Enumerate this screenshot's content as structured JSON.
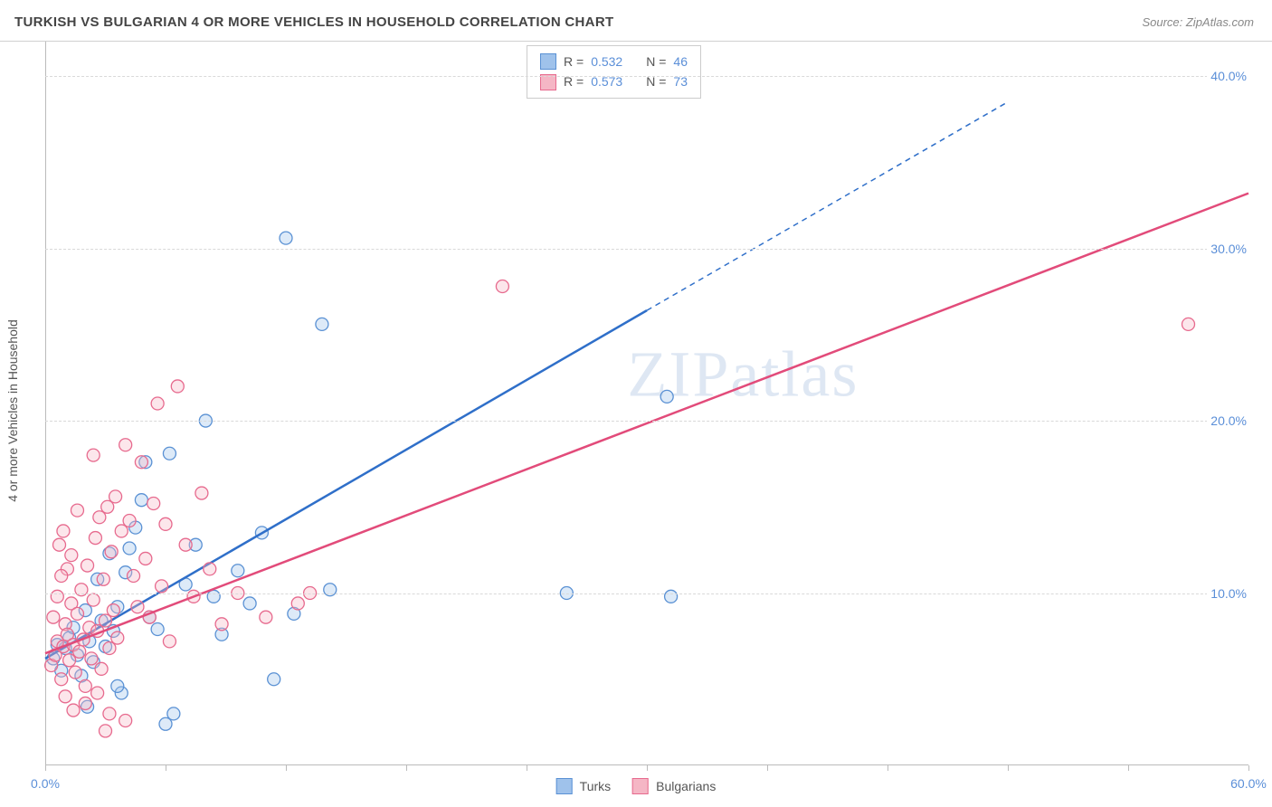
{
  "title": "TURKISH VS BULGARIAN 4 OR MORE VEHICLES IN HOUSEHOLD CORRELATION CHART",
  "source": "Source: ZipAtlas.com",
  "watermark": "ZIPatlas",
  "chart": {
    "type": "scatter",
    "ylabel": "4 or more Vehicles in Household",
    "xlim": [
      0,
      60
    ],
    "ylim": [
      0,
      42
    ],
    "ytick_values": [
      10,
      20,
      30,
      40
    ],
    "ytick_labels": [
      "10.0%",
      "20.0%",
      "30.0%",
      "40.0%"
    ],
    "xtick_values": [
      0,
      6,
      12,
      18,
      24,
      30,
      36,
      42,
      48,
      54,
      60
    ],
    "xtick_label_left": "0.0%",
    "xtick_label_right": "60.0%",
    "grid_color": "#d9d9d9",
    "background_color": "#ffffff",
    "marker_radius": 7,
    "marker_fill_opacity": 0.35,
    "marker_stroke_width": 1.3,
    "series": [
      {
        "name": "Turks",
        "color_fill": "#9fc2eb",
        "color_stroke": "#5a91d4",
        "line_color": "#2f6fc9",
        "R": "0.532",
        "N": "46",
        "trend": {
          "x1": 0,
          "y1": 6.2,
          "x2": 30,
          "y2": 26.4,
          "dash_to_x": 48,
          "dash_to_y": 38.5
        },
        "points": [
          [
            0.4,
            6.2
          ],
          [
            0.6,
            7.0
          ],
          [
            0.8,
            5.5
          ],
          [
            1.0,
            6.8
          ],
          [
            1.2,
            7.4
          ],
          [
            1.4,
            8.0
          ],
          [
            1.6,
            6.4
          ],
          [
            1.8,
            5.2
          ],
          [
            2.0,
            9.0
          ],
          [
            2.2,
            7.2
          ],
          [
            2.4,
            6.0
          ],
          [
            2.6,
            10.8
          ],
          [
            2.8,
            8.4
          ],
          [
            3.0,
            6.9
          ],
          [
            3.2,
            12.3
          ],
          [
            3.4,
            7.8
          ],
          [
            3.6,
            9.2
          ],
          [
            3.8,
            4.2
          ],
          [
            4.0,
            11.2
          ],
          [
            4.2,
            12.6
          ],
          [
            4.5,
            13.8
          ],
          [
            5.0,
            17.6
          ],
          [
            5.2,
            8.6
          ],
          [
            5.6,
            7.9
          ],
          [
            6.2,
            18.1
          ],
          [
            6.4,
            3.0
          ],
          [
            7.0,
            10.5
          ],
          [
            7.5,
            12.8
          ],
          [
            8.0,
            20.0
          ],
          [
            8.4,
            9.8
          ],
          [
            8.8,
            7.6
          ],
          [
            9.6,
            11.3
          ],
          [
            10.2,
            9.4
          ],
          [
            10.8,
            13.5
          ],
          [
            11.4,
            5.0
          ],
          [
            12.0,
            30.6
          ],
          [
            12.4,
            8.8
          ],
          [
            13.8,
            25.6
          ],
          [
            14.2,
            10.2
          ],
          [
            26.0,
            10.0
          ],
          [
            31.0,
            21.4
          ],
          [
            31.2,
            9.8
          ],
          [
            4.8,
            15.4
          ],
          [
            6.0,
            2.4
          ],
          [
            2.1,
            3.4
          ],
          [
            3.6,
            4.6
          ]
        ]
      },
      {
        "name": "Bulgarians",
        "color_fill": "#f5b6c5",
        "color_stroke": "#e76a8e",
        "line_color": "#e24b7a",
        "R": "0.573",
        "N": "73",
        "trend": {
          "x1": 0,
          "y1": 6.5,
          "x2": 60,
          "y2": 33.2
        },
        "points": [
          [
            0.3,
            5.8
          ],
          [
            0.5,
            6.4
          ],
          [
            0.6,
            7.2
          ],
          [
            0.8,
            5.0
          ],
          [
            0.9,
            6.9
          ],
          [
            1.0,
            8.2
          ],
          [
            1.1,
            7.6
          ],
          [
            1.2,
            6.1
          ],
          [
            1.3,
            9.4
          ],
          [
            1.4,
            7.0
          ],
          [
            1.5,
            5.4
          ],
          [
            1.6,
            8.8
          ],
          [
            1.7,
            6.6
          ],
          [
            1.8,
            10.2
          ],
          [
            1.9,
            7.3
          ],
          [
            2.0,
            4.6
          ],
          [
            2.1,
            11.6
          ],
          [
            2.2,
            8.0
          ],
          [
            2.3,
            6.2
          ],
          [
            2.4,
            9.6
          ],
          [
            2.5,
            13.2
          ],
          [
            2.6,
            7.8
          ],
          [
            2.7,
            14.4
          ],
          [
            2.8,
            5.6
          ],
          [
            2.9,
            10.8
          ],
          [
            3.0,
            8.4
          ],
          [
            3.1,
            15.0
          ],
          [
            3.2,
            6.8
          ],
          [
            3.3,
            12.4
          ],
          [
            3.4,
            9.0
          ],
          [
            3.5,
            15.6
          ],
          [
            3.6,
            7.4
          ],
          [
            3.8,
            13.6
          ],
          [
            4.0,
            18.6
          ],
          [
            4.2,
            14.2
          ],
          [
            4.4,
            11.0
          ],
          [
            4.6,
            9.2
          ],
          [
            4.8,
            17.6
          ],
          [
            5.0,
            12.0
          ],
          [
            5.2,
            8.6
          ],
          [
            5.4,
            15.2
          ],
          [
            5.6,
            21.0
          ],
          [
            5.8,
            10.4
          ],
          [
            6.0,
            14.0
          ],
          [
            6.2,
            7.2
          ],
          [
            6.6,
            22.0
          ],
          [
            7.0,
            12.8
          ],
          [
            7.4,
            9.8
          ],
          [
            7.8,
            15.8
          ],
          [
            8.2,
            11.4
          ],
          [
            8.8,
            8.2
          ],
          [
            9.6,
            10.0
          ],
          [
            11.0,
            8.6
          ],
          [
            12.6,
            9.4
          ],
          [
            13.2,
            10.0
          ],
          [
            22.8,
            27.8
          ],
          [
            57.0,
            25.6
          ],
          [
            1.0,
            4.0
          ],
          [
            1.4,
            3.2
          ],
          [
            2.0,
            3.6
          ],
          [
            2.6,
            4.2
          ],
          [
            3.2,
            3.0
          ],
          [
            0.7,
            12.8
          ],
          [
            0.9,
            13.6
          ],
          [
            1.1,
            11.4
          ],
          [
            1.6,
            14.8
          ],
          [
            2.4,
            18.0
          ],
          [
            0.4,
            8.6
          ],
          [
            0.6,
            9.8
          ],
          [
            0.8,
            11.0
          ],
          [
            1.3,
            12.2
          ],
          [
            3.0,
            2.0
          ],
          [
            4.0,
            2.6
          ]
        ]
      }
    ]
  },
  "legend": {
    "top_box": {
      "r_label": "R =",
      "n_label": "N ="
    },
    "bottom": {
      "series1": "Turks",
      "series2": "Bulgarians"
    }
  }
}
